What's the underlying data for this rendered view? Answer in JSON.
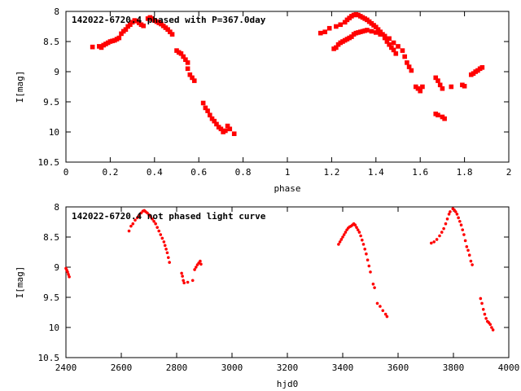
{
  "chart_data": [
    {
      "type": "scatter",
      "title": "142022-6720.4 phased with P=367.0day",
      "xlabel": "phase",
      "ylabel": "I[mag]",
      "xlim": [
        0,
        2
      ],
      "ylim": [
        8,
        10.5
      ],
      "y_inverted": true,
      "x_ticks": [
        "0",
        "0.2",
        "0.4",
        "0.6",
        "0.8",
        "1",
        "1.2",
        "1.4",
        "1.6",
        "1.8",
        "2"
      ],
      "y_ticks": [
        "8",
        "8.5",
        "9",
        "9.5",
        "10",
        "10.5"
      ],
      "grid": false,
      "marker_color": "#ff0000",
      "series": [
        {
          "points": [
            [
              0.12,
              8.59
            ],
            [
              0.15,
              8.58
            ],
            [
              0.16,
              8.6
            ],
            [
              0.17,
              8.56
            ],
            [
              0.18,
              8.54
            ],
            [
              0.19,
              8.52
            ],
            [
              0.2,
              8.5
            ],
            [
              0.21,
              8.49
            ],
            [
              0.22,
              8.48
            ],
            [
              0.23,
              8.46
            ],
            [
              0.24,
              8.44
            ],
            [
              0.25,
              8.37
            ],
            [
              0.26,
              8.33
            ],
            [
              0.27,
              8.3
            ],
            [
              0.28,
              8.25
            ],
            [
              0.29,
              8.22
            ],
            [
              0.3,
              8.18
            ],
            [
              0.31,
              8.15
            ],
            [
              0.32,
              8.16
            ],
            [
              0.33,
              8.19
            ],
            [
              0.34,
              8.22
            ],
            [
              0.35,
              8.24
            ],
            [
              0.37,
              8.12
            ],
            [
              0.38,
              8.1
            ],
            [
              0.39,
              8.12
            ],
            [
              0.4,
              8.15
            ],
            [
              0.41,
              8.17
            ],
            [
              0.42,
              8.19
            ],
            [
              0.43,
              8.21
            ],
            [
              0.44,
              8.24
            ],
            [
              0.45,
              8.27
            ],
            [
              0.46,
              8.3
            ],
            [
              0.47,
              8.34
            ],
            [
              0.48,
              8.38
            ],
            [
              0.5,
              8.65
            ],
            [
              0.51,
              8.68
            ],
            [
              0.52,
              8.7
            ],
            [
              0.53,
              8.75
            ],
            [
              0.54,
              8.8
            ],
            [
              0.55,
              8.85
            ],
            [
              0.55,
              8.95
            ],
            [
              0.56,
              9.05
            ],
            [
              0.57,
              9.1
            ],
            [
              0.58,
              9.15
            ],
            [
              0.62,
              9.52
            ],
            [
              0.63,
              9.6
            ],
            [
              0.64,
              9.65
            ],
            [
              0.65,
              9.72
            ],
            [
              0.66,
              9.78
            ],
            [
              0.67,
              9.82
            ],
            [
              0.68,
              9.87
            ],
            [
              0.69,
              9.92
            ],
            [
              0.7,
              9.95
            ],
            [
              0.71,
              10.0
            ],
            [
              0.72,
              9.98
            ],
            [
              0.73,
              9.9
            ],
            [
              0.74,
              9.95
            ],
            [
              0.76,
              10.03
            ],
            [
              1.15,
              8.36
            ],
            [
              1.17,
              8.34
            ],
            [
              1.19,
              8.28
            ],
            [
              1.21,
              8.62
            ],
            [
              1.22,
              8.6
            ],
            [
              1.23,
              8.55
            ],
            [
              1.24,
              8.52
            ],
            [
              1.25,
              8.5
            ],
            [
              1.26,
              8.48
            ],
            [
              1.27,
              8.46
            ],
            [
              1.28,
              8.44
            ],
            [
              1.29,
              8.42
            ],
            [
              1.3,
              8.38
            ],
            [
              1.31,
              8.36
            ],
            [
              1.32,
              8.35
            ],
            [
              1.33,
              8.34
            ],
            [
              1.34,
              8.33
            ],
            [
              1.35,
              8.32
            ],
            [
              1.36,
              8.31
            ],
            [
              1.22,
              8.25
            ],
            [
              1.24,
              8.22
            ],
            [
              1.26,
              8.18
            ],
            [
              1.27,
              8.14
            ],
            [
              1.28,
              8.11
            ],
            [
              1.29,
              8.08
            ],
            [
              1.3,
              8.06
            ],
            [
              1.31,
              8.05
            ],
            [
              1.32,
              8.06
            ],
            [
              1.33,
              8.08
            ],
            [
              1.34,
              8.1
            ],
            [
              1.35,
              8.12
            ],
            [
              1.36,
              8.14
            ],
            [
              1.37,
              8.17
            ],
            [
              1.38,
              8.2
            ],
            [
              1.39,
              8.23
            ],
            [
              1.4,
              8.26
            ],
            [
              1.41,
              8.3
            ],
            [
              1.42,
              8.34
            ],
            [
              1.43,
              8.38
            ],
            [
              1.44,
              8.44
            ],
            [
              1.45,
              8.5
            ],
            [
              1.46,
              8.55
            ],
            [
              1.47,
              8.6
            ],
            [
              1.48,
              8.64
            ],
            [
              1.49,
              8.7
            ],
            [
              1.38,
              8.33
            ],
            [
              1.4,
              8.35
            ],
            [
              1.42,
              8.38
            ],
            [
              1.44,
              8.41
            ],
            [
              1.46,
              8.45
            ],
            [
              1.48,
              8.52
            ],
            [
              1.5,
              8.58
            ],
            [
              1.52,
              8.65
            ],
            [
              1.53,
              8.75
            ],
            [
              1.54,
              8.85
            ],
            [
              1.55,
              8.92
            ],
            [
              1.56,
              8.98
            ],
            [
              1.58,
              9.25
            ],
            [
              1.59,
              9.28
            ],
            [
              1.6,
              9.32
            ],
            [
              1.61,
              9.25
            ],
            [
              1.67,
              9.1
            ],
            [
              1.68,
              9.15
            ],
            [
              1.69,
              9.22
            ],
            [
              1.7,
              9.28
            ],
            [
              1.67,
              9.7
            ],
            [
              1.68,
              9.72
            ],
            [
              1.7,
              9.75
            ],
            [
              1.71,
              9.78
            ],
            [
              1.74,
              9.25
            ],
            [
              1.79,
              9.22
            ],
            [
              1.8,
              9.24
            ],
            [
              1.83,
              9.05
            ],
            [
              1.84,
              9.03
            ],
            [
              1.85,
              9.0
            ],
            [
              1.86,
              8.98
            ],
            [
              1.87,
              8.95
            ],
            [
              1.88,
              8.93
            ]
          ]
        }
      ]
    },
    {
      "type": "scatter",
      "title": "142022-6720.4 not phased light curve",
      "xlabel": "hjd0",
      "ylabel": "I[mag]",
      "xlim": [
        2400,
        4000
      ],
      "ylim": [
        8,
        10.5
      ],
      "y_inverted": true,
      "x_ticks": [
        "2400",
        "2600",
        "2800",
        "3000",
        "3200",
        "3400",
        "3600",
        "3800",
        "4000"
      ],
      "y_ticks": [
        "8",
        "8.5",
        "9",
        "9.5",
        "10",
        "10.5"
      ],
      "grid": false,
      "marker_color": "#ff0000",
      "series": [
        {
          "points": [
            [
              2400,
              9.02
            ],
            [
              2403,
              9.05
            ],
            [
              2406,
              9.08
            ],
            [
              2409,
              9.12
            ],
            [
              2412,
              9.16
            ],
            [
              2628,
              8.4
            ],
            [
              2635,
              8.32
            ],
            [
              2642,
              8.28
            ],
            [
              2650,
              8.22
            ],
            [
              2658,
              8.18
            ],
            [
              2665,
              8.14
            ],
            [
              2672,
              8.1
            ],
            [
              2678,
              8.07
            ],
            [
              2683,
              8.06
            ],
            [
              2688,
              8.08
            ],
            [
              2694,
              8.1
            ],
            [
              2700,
              8.13
            ],
            [
              2706,
              8.16
            ],
            [
              2712,
              8.2
            ],
            [
              2718,
              8.24
            ],
            [
              2724,
              8.28
            ],
            [
              2730,
              8.34
            ],
            [
              2736,
              8.4
            ],
            [
              2742,
              8.46
            ],
            [
              2748,
              8.52
            ],
            [
              2754,
              8.58
            ],
            [
              2758,
              8.64
            ],
            [
              2762,
              8.7
            ],
            [
              2766,
              8.76
            ],
            [
              2770,
              8.84
            ],
            [
              2774,
              8.92
            ],
            [
              2818,
              9.1
            ],
            [
              2821,
              9.15
            ],
            [
              2824,
              9.22
            ],
            [
              2827,
              9.26
            ],
            [
              2840,
              9.25
            ],
            [
              2858,
              9.22
            ],
            [
              2865,
              9.04
            ],
            [
              2870,
              9.0
            ],
            [
              2875,
              8.96
            ],
            [
              2880,
              8.93
            ],
            [
              2885,
              8.9
            ],
            [
              2888,
              8.95
            ],
            [
              3385,
              8.62
            ],
            [
              3390,
              8.58
            ],
            [
              3395,
              8.54
            ],
            [
              3400,
              8.5
            ],
            [
              3405,
              8.46
            ],
            [
              3410,
              8.42
            ],
            [
              3415,
              8.38
            ],
            [
              3420,
              8.35
            ],
            [
              3425,
              8.33
            ],
            [
              3430,
              8.32
            ],
            [
              3435,
              8.3
            ],
            [
              3440,
              8.28
            ],
            [
              3445,
              8.3
            ],
            [
              3450,
              8.34
            ],
            [
              3455,
              8.38
            ],
            [
              3460,
              8.42
            ],
            [
              3465,
              8.48
            ],
            [
              3470,
              8.55
            ],
            [
              3475,
              8.62
            ],
            [
              3480,
              8.7
            ],
            [
              3485,
              8.78
            ],
            [
              3490,
              8.88
            ],
            [
              3495,
              8.98
            ],
            [
              3500,
              9.08
            ],
            [
              3510,
              9.28
            ],
            [
              3515,
              9.34
            ],
            [
              3525,
              9.6
            ],
            [
              3535,
              9.65
            ],
            [
              3545,
              9.72
            ],
            [
              3555,
              9.78
            ],
            [
              3560,
              9.82
            ],
            [
              3720,
              8.6
            ],
            [
              3730,
              8.58
            ],
            [
              3740,
              8.54
            ],
            [
              3750,
              8.48
            ],
            [
              3758,
              8.42
            ],
            [
              3765,
              8.36
            ],
            [
              3772,
              8.28
            ],
            [
              3778,
              8.2
            ],
            [
              3784,
              8.12
            ],
            [
              3788,
              8.08
            ],
            [
              3798,
              8.03
            ],
            [
              3803,
              8.05
            ],
            [
              3808,
              8.08
            ],
            [
              3813,
              8.12
            ],
            [
              3818,
              8.18
            ],
            [
              3823,
              8.24
            ],
            [
              3828,
              8.3
            ],
            [
              3833,
              8.38
            ],
            [
              3838,
              8.46
            ],
            [
              3843,
              8.56
            ],
            [
              3848,
              8.66
            ],
            [
              3853,
              8.72
            ],
            [
              3858,
              8.8
            ],
            [
              3863,
              8.9
            ],
            [
              3868,
              8.96
            ],
            [
              3898,
              9.52
            ],
            [
              3903,
              9.6
            ],
            [
              3908,
              9.7
            ],
            [
              3913,
              9.78
            ],
            [
              3918,
              9.85
            ],
            [
              3923,
              9.9
            ],
            [
              3928,
              9.92
            ],
            [
              3933,
              9.95
            ],
            [
              3938,
              10.0
            ],
            [
              3943,
              10.04
            ]
          ]
        }
      ]
    }
  ]
}
